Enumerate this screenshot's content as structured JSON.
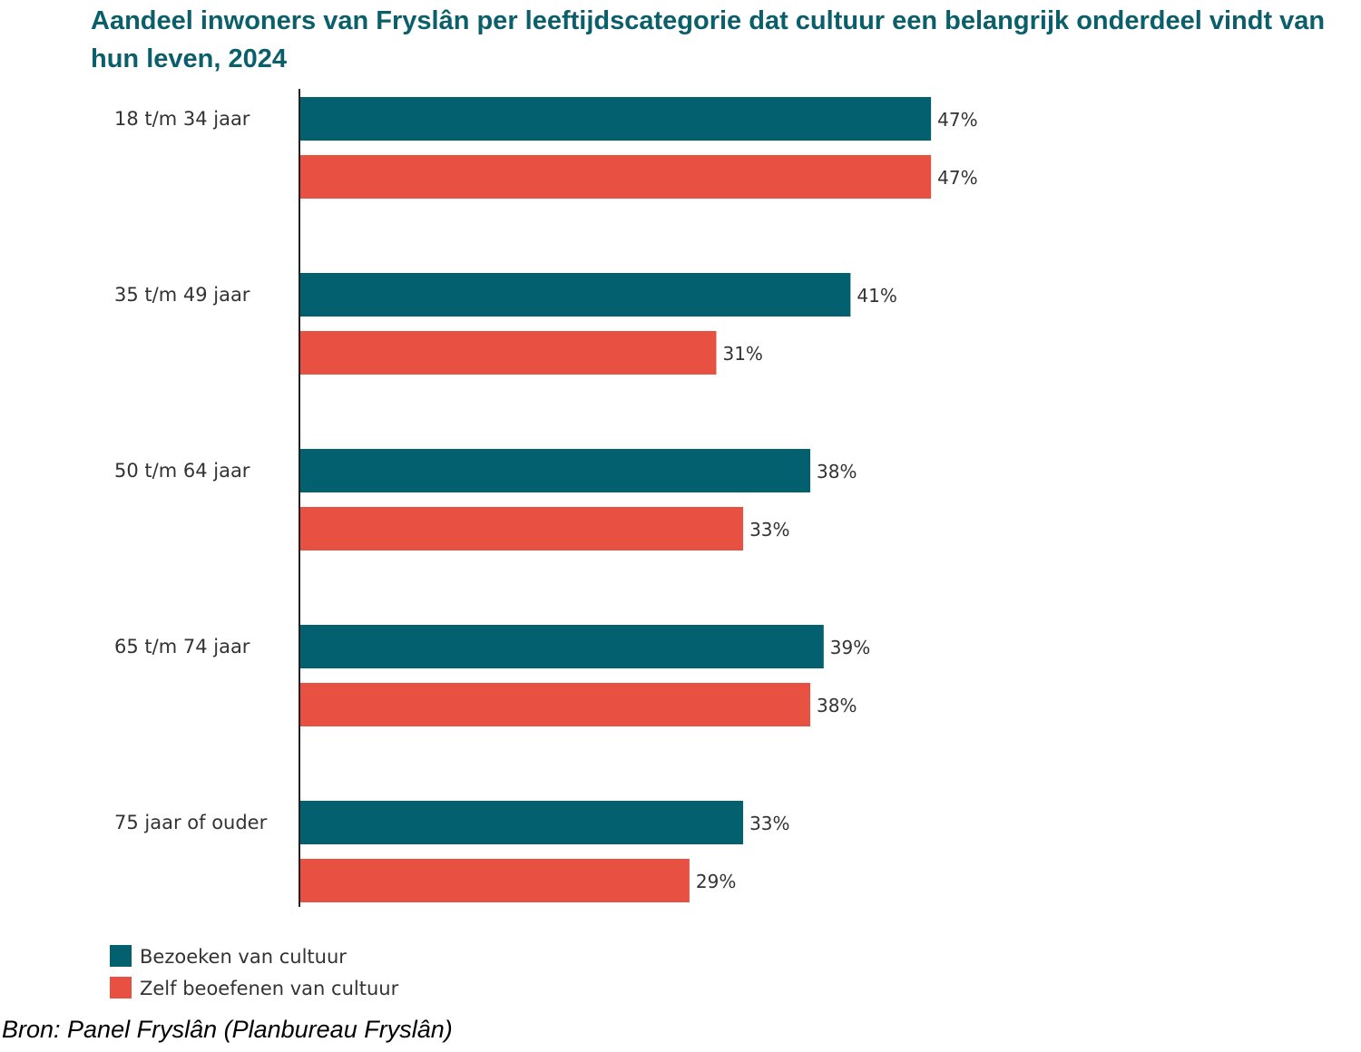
{
  "chart_data": {
    "type": "bar",
    "orientation": "horizontal",
    "title": "Aandeel inwoners van Fryslân per leeftijdscategorie dat cultuur een belangrijk onderdeel vindt van hun leven, 2024",
    "categories": [
      "18 t/m 34 jaar",
      "35 t/m 49 jaar",
      "50 t/m 64 jaar",
      "65 t/m 74 jaar",
      "75 jaar of ouder"
    ],
    "series": [
      {
        "name": "Bezoeken van cultuur",
        "color": "#02606f",
        "values": [
          47,
          41,
          38,
          39,
          33
        ],
        "labels": [
          "47%",
          "41%",
          "38%",
          "39%",
          "33%"
        ]
      },
      {
        "name": "Zelf beoefenen van cultuur",
        "color": "#e85141",
        "values": [
          47,
          31,
          33,
          38,
          29
        ],
        "labels": [
          "47%",
          "31%",
          "33%",
          "38%",
          "29%"
        ]
      }
    ],
    "xlabel": "",
    "ylabel": "",
    "xlim": [
      0,
      100
    ],
    "value_unit": "%",
    "grid": false,
    "legend": "bottom-left",
    "source": "Bron: Panel Fryslân (Planbureau Fryslân)"
  }
}
